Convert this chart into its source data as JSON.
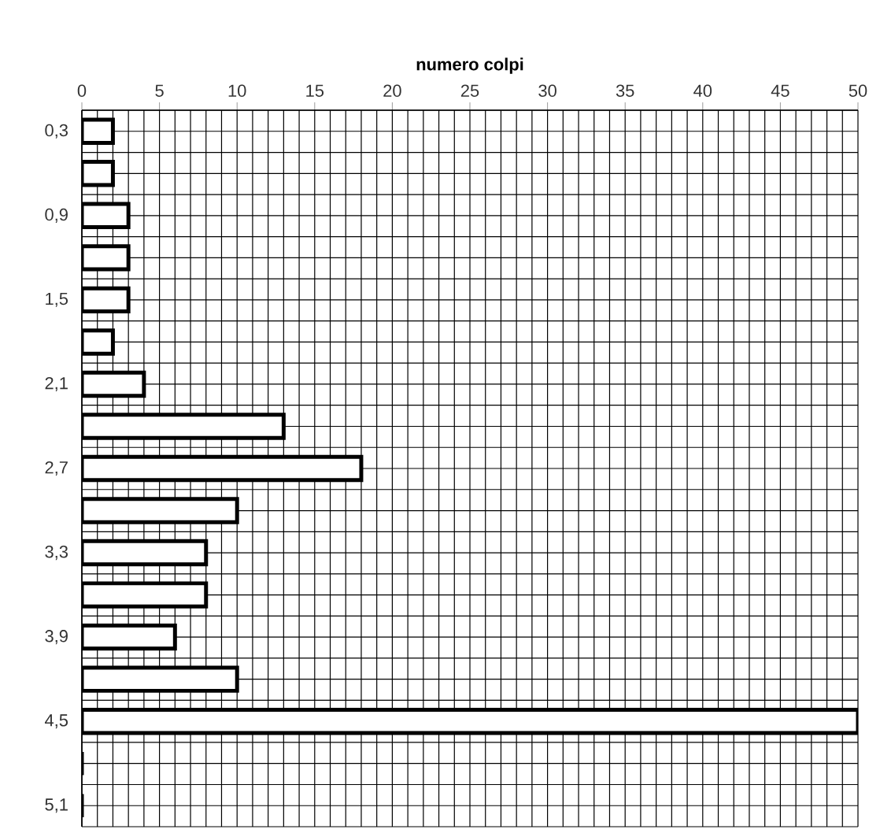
{
  "chart_data": {
    "type": "bar",
    "orientation": "horizontal",
    "xlabel": "numero colpi",
    "categories": [
      "0,3",
      null,
      "0,9",
      null,
      "1,5",
      null,
      "2,1",
      null,
      "2,7",
      null,
      "3,3",
      null,
      "3,9",
      null,
      "4,5",
      null,
      "5,1"
    ],
    "values": [
      2,
      2,
      3,
      3,
      3,
      2,
      4,
      13,
      18,
      10,
      8,
      8,
      6,
      10,
      50,
      0,
      0
    ],
    "color": "#ffffff",
    "xlim": [
      0,
      50
    ],
    "xticks": [
      0,
      5,
      10,
      15,
      20,
      25,
      30,
      35,
      40,
      45,
      50
    ],
    "grid": true
  }
}
